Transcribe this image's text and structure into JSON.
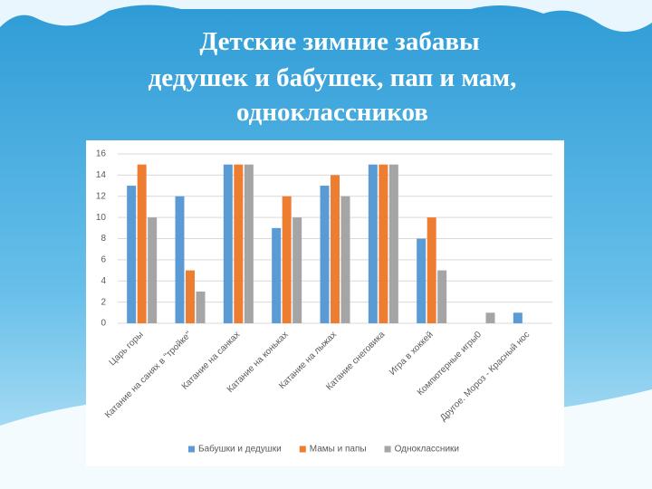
{
  "chart_data": {
    "type": "bar",
    "title": [
      "Детские зимние забавы",
      "дедушек и бабушек, пап и мам,",
      "одноклассников"
    ],
    "categories": [
      "Царь горы",
      "Катание на санях в \"тройке\"",
      "Катание на санках",
      "Катание на коньках",
      "Катание на лыжах",
      "Катание снеговика",
      "Игра в хоккей",
      "Компютерные игры0",
      "Другое. Мороз - Красный нос"
    ],
    "series": [
      {
        "name": "Бабушки и дедушки",
        "color": "#5b9bd5",
        "values": [
          13,
          12,
          15,
          9,
          13,
          15,
          8,
          0,
          1
        ]
      },
      {
        "name": "Мамы и папы",
        "color": "#ed7d31",
        "values": [
          15,
          5,
          15,
          12,
          14,
          15,
          10,
          0,
          0
        ]
      },
      {
        "name": "Одноклассники",
        "color": "#a5a5a5",
        "values": [
          10,
          3,
          15,
          10,
          12,
          15,
          5,
          1,
          0
        ]
      }
    ],
    "ylim": [
      0,
      16
    ],
    "yticks": [
      0,
      2,
      4,
      6,
      8,
      10,
      12,
      14,
      16
    ],
    "grid": true,
    "legend": "bottom"
  }
}
